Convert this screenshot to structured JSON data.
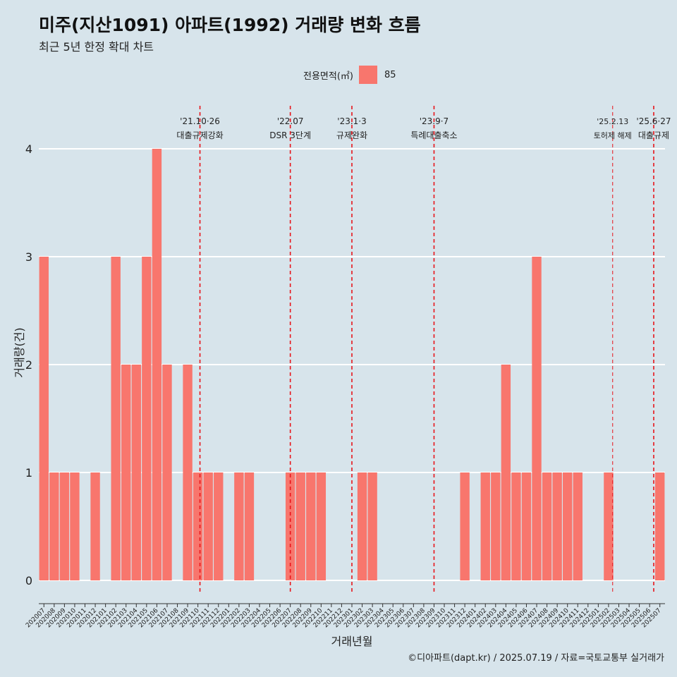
{
  "title": "미주(지산1091) 아파트(1992) 거래량 변화 흐름",
  "subtitle": "최근 5년 한정 확대 차트",
  "legend": {
    "title": "전용면적(㎡)",
    "item": "85",
    "color": "#f8766d"
  },
  "caption": "©디아파트(dapt.kr) / 2025.07.19 / 자료=국토교통부 실거래가",
  "chart_data": {
    "type": "bar",
    "xlabel": "거래년월",
    "ylabel": "거래량(건)",
    "ylim": [
      0,
      4
    ],
    "yticks": [
      0,
      1,
      2,
      3,
      4
    ],
    "grid": true,
    "legend_position": "top",
    "categories": [
      "202007",
      "202008",
      "202009",
      "202010",
      "202011",
      "202012",
      "202101",
      "202102",
      "202103",
      "202104",
      "202105",
      "202106",
      "202107",
      "202108",
      "202109",
      "202110",
      "202111",
      "202112",
      "202201",
      "202202",
      "202203",
      "202204",
      "202205",
      "202206",
      "202207",
      "202208",
      "202209",
      "202210",
      "202211",
      "202212",
      "202301",
      "202302",
      "202303",
      "202304",
      "202305",
      "202306",
      "202307",
      "202308",
      "202309",
      "202310",
      "202311",
      "202312",
      "202401",
      "202402",
      "202403",
      "202404",
      "202405",
      "202406",
      "202407",
      "202408",
      "202409",
      "202410",
      "202411",
      "202412",
      "202501",
      "202502",
      "202503",
      "202504",
      "202505",
      "202506",
      "202507"
    ],
    "series": [
      {
        "name": "85",
        "color": "#f8766d",
        "values": [
          3,
          1,
          1,
          1,
          0,
          1,
          0,
          3,
          2,
          2,
          3,
          4,
          2,
          0,
          2,
          1,
          1,
          1,
          0,
          1,
          1,
          0,
          0,
          0,
          1,
          1,
          1,
          1,
          0,
          0,
          0,
          1,
          1,
          0,
          0,
          0,
          0,
          0,
          0,
          0,
          0,
          1,
          0,
          1,
          1,
          2,
          1,
          1,
          3,
          1,
          1,
          1,
          1,
          0,
          0,
          1,
          0,
          0,
          0,
          0,
          1
        ]
      }
    ],
    "events": [
      {
        "date": "'21.10·26",
        "label": "대출규제강화",
        "month_index": 15.2
      },
      {
        "date": "'22.07",
        "label": "DSR 3단계",
        "month_index": 24
      },
      {
        "date": "'23.1·3",
        "label": "규제완화",
        "month_index": 30
      },
      {
        "date": "'23.9·7",
        "label": "특례대출축소",
        "month_index": 38
      },
      {
        "date": "'25.2.13",
        "label": "토허제 해제",
        "month_index": 55.4,
        "small": true
      },
      {
        "date": "'25.6·27",
        "label": "대출규제",
        "month_index": 59.4
      }
    ]
  }
}
